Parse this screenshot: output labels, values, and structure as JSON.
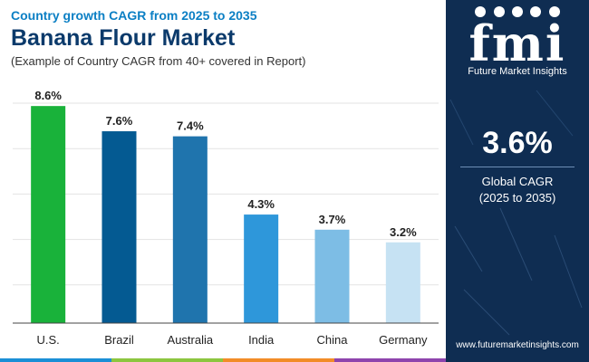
{
  "header": {
    "subtitle": "Country growth CAGR from 2025 to 2035",
    "title": "Banana Flour Market",
    "note": "(Example of Country CAGR from 40+ covered in Report)"
  },
  "chart_data": {
    "type": "bar",
    "title": "Banana Flour Market",
    "subtitle": "Country growth CAGR from 2025 to 2035",
    "categories": [
      "U.S.",
      "Brazil",
      "Australia",
      "India",
      "China",
      "Germany"
    ],
    "values": [
      8.6,
      7.6,
      7.4,
      4.3,
      3.7,
      3.2
    ],
    "value_labels": [
      "8.6%",
      "7.6%",
      "7.4%",
      "4.3%",
      "3.7%",
      "3.2%"
    ],
    "bar_colors": [
      "#19b23a",
      "#045a92",
      "#1f74ad",
      "#2e97da",
      "#7dbde5",
      "#c6e2f3"
    ],
    "xlabel": "",
    "ylabel": "",
    "ylim": [
      0,
      9
    ],
    "grid": true,
    "legend": "none"
  },
  "sidebar": {
    "logo_text": "fmi",
    "logo_sub": "Future Market Insights",
    "global_value": "3.6%",
    "global_label": "Global CAGR",
    "global_range": "(2025 to 2035)",
    "website": "www.futuremarketinsights.com",
    "background": "#0f2d52"
  },
  "bottom_bar_colors": [
    "#1b8fd6",
    "#8cc63f",
    "#f28c28",
    "#8e44ad"
  ]
}
